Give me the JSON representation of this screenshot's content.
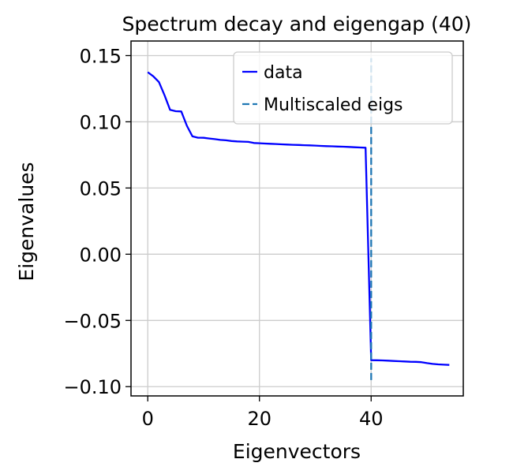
{
  "chart_data": {
    "type": "line",
    "title": "Spectrum decay and eigengap (40)",
    "xlabel": "Eigenvectors",
    "ylabel": "Eigenvalues",
    "xlim": [
      -3,
      56.5
    ],
    "ylim": [
      -0.107,
      0.161
    ],
    "x_ticks": [
      0,
      20,
      40
    ],
    "x_tick_labels": [
      "0",
      "20",
      "40"
    ],
    "y_ticks": [
      0.15,
      0.1,
      0.05,
      0.0,
      -0.05,
      -0.1
    ],
    "y_tick_labels": [
      "0.15",
      "0.10",
      "0.05",
      "0.00",
      "−0.05",
      "−0.10"
    ],
    "grid": true,
    "legend_position": "top-right",
    "series": [
      {
        "name": "data",
        "color": "#0000ff",
        "style": "solid",
        "x": [
          0,
          1,
          2,
          3,
          4,
          5,
          6,
          7,
          8,
          9,
          10,
          11,
          12,
          13,
          14,
          15,
          16,
          17,
          18,
          19,
          20,
          21,
          22,
          23,
          24,
          25,
          26,
          27,
          28,
          29,
          30,
          31,
          32,
          33,
          34,
          35,
          36,
          37,
          38,
          39,
          40,
          41,
          42,
          43,
          44,
          45,
          46,
          47,
          48,
          49,
          50,
          51,
          52,
          53,
          54
        ],
        "values": [
          0.1375,
          0.1343,
          0.13,
          0.12,
          0.109,
          0.108,
          0.1078,
          0.097,
          0.089,
          0.088,
          0.0879,
          0.0874,
          0.0869,
          0.0863,
          0.086,
          0.0855,
          0.0852,
          0.085,
          0.0848,
          0.084,
          0.0838,
          0.0836,
          0.0834,
          0.0832,
          0.083,
          0.0828,
          0.0826,
          0.0825,
          0.0823,
          0.0822,
          0.082,
          0.0818,
          0.0816,
          0.0815,
          0.0813,
          0.0812,
          0.081,
          0.0808,
          0.0806,
          0.0804,
          -0.08,
          -0.0801,
          -0.0802,
          -0.0804,
          -0.0806,
          -0.0808,
          -0.081,
          -0.0812,
          -0.0813,
          -0.0815,
          -0.0822,
          -0.0828,
          -0.0832,
          -0.0834,
          -0.0836
        ]
      },
      {
        "name": "Multiscaled eigs",
        "color": "#1f77b4",
        "style": "dashed",
        "x": [
          40,
          40
        ],
        "values": [
          -0.095,
          0.148
        ]
      }
    ]
  }
}
